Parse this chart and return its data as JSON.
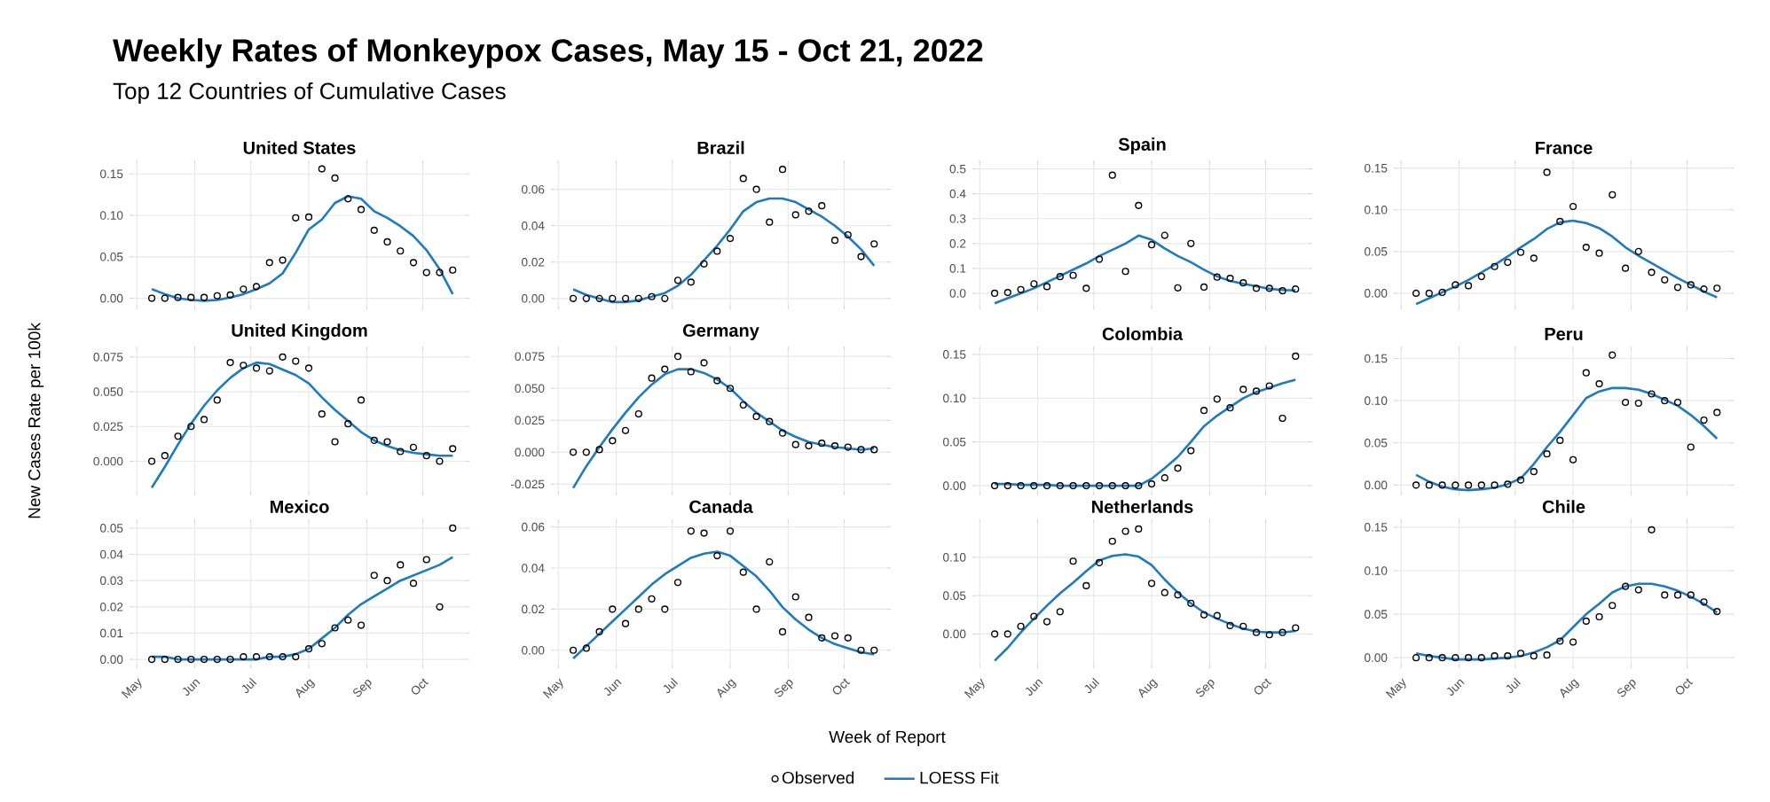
{
  "chart_data": [
    {
      "type": "other",
      "title": "Weekly Rates of Monkeypox Cases, May 15 - Oct 21, 2022",
      "subtitle": "Top 12 Countries of Cumulative Cases"
    },
    {
      "type": "scatter",
      "title": "United States",
      "tick_labels": "y",
      "grid": true,
      "x": [
        "2022-05-09",
        "2022-05-16",
        "2022-05-23",
        "2022-05-30",
        "2022-06-06",
        "2022-06-13",
        "2022-06-20",
        "2022-06-27",
        "2022-07-04",
        "2022-07-11",
        "2022-07-18",
        "2022-07-25",
        "2022-08-01",
        "2022-08-08",
        "2022-08-15",
        "2022-08-22",
        "2022-08-29",
        "2022-09-05",
        "2022-09-12",
        "2022-09-19",
        "2022-09-26",
        "2022-10-03",
        "2022-10-10",
        "2022-10-17"
      ],
      "xlim": [
        "2022-04-29",
        "2022-10-24"
      ],
      "xticks": [
        {
          "value": "2022-05-01",
          "label": null
        },
        {
          "value": "2022-06-01",
          "label": null
        },
        {
          "value": "2022-07-01",
          "label": null
        },
        {
          "value": "2022-08-01",
          "label": null
        },
        {
          "value": "2022-09-01",
          "label": null
        },
        {
          "value": "2022-10-01",
          "label": null
        }
      ],
      "ylim": [
        -0.009,
        0.162
      ],
      "yticks": [
        {
          "value": 0,
          "label": "0.00"
        },
        {
          "value": 0.05,
          "label": "0.05"
        },
        {
          "value": 0.1,
          "label": "0.10"
        },
        {
          "value": 0.15,
          "label": "0.15"
        }
      ],
      "series": [
        {
          "type": "scatter",
          "marker": "circle",
          "color": "#000000",
          "values": [
            0,
            0,
            0.001,
            0.001,
            0.001,
            0.003,
            0.004,
            0.011,
            0.014,
            0.043,
            0.046,
            0.097,
            0.098,
            0.156,
            0.145,
            0.12,
            0.107,
            0.082,
            0.068,
            0.057,
            0.043,
            0.031,
            0.031,
            0.034
          ]
        },
        {
          "type": "line",
          "color": "#1f7bbf",
          "values": [
            0.011,
            0.005,
            0.0,
            -0.002,
            -0.003,
            -0.002,
            0.001,
            0.005,
            0.011,
            0.018,
            0.03,
            0.055,
            0.083,
            0.095,
            0.115,
            0.123,
            0.12,
            0.105,
            0.097,
            0.087,
            0.075,
            0.058,
            0.035,
            0.005
          ]
        }
      ]
    },
    {
      "type": "scatter",
      "title": "Brazil",
      "tick_labels": "y",
      "grid": true,
      "x": [
        "2022-05-09",
        "2022-05-16",
        "2022-05-23",
        "2022-05-30",
        "2022-06-06",
        "2022-06-13",
        "2022-06-20",
        "2022-06-27",
        "2022-07-04",
        "2022-07-11",
        "2022-07-18",
        "2022-07-25",
        "2022-08-01",
        "2022-08-08",
        "2022-08-15",
        "2022-08-22",
        "2022-08-29",
        "2022-09-05",
        "2022-09-12",
        "2022-09-19",
        "2022-09-26",
        "2022-10-03",
        "2022-10-10",
        "2022-10-17"
      ],
      "xlim": [
        "2022-04-29",
        "2022-10-24"
      ],
      "xticks": [
        {
          "value": "2022-05-01",
          "label": null
        },
        {
          "value": "2022-06-01",
          "label": null
        },
        {
          "value": "2022-07-01",
          "label": null
        },
        {
          "value": "2022-08-01",
          "label": null
        },
        {
          "value": "2022-09-01",
          "label": null
        },
        {
          "value": "2022-10-01",
          "label": null
        }
      ],
      "ylim": [
        -0.004,
        0.074
      ],
      "yticks": [
        {
          "value": 0,
          "label": "0.00"
        },
        {
          "value": 0.02,
          "label": "0.02"
        },
        {
          "value": 0.04,
          "label": "0.04"
        },
        {
          "value": 0.06,
          "label": "0.06"
        }
      ],
      "series": [
        {
          "type": "scatter",
          "marker": "circle",
          "color": "#000000",
          "values": [
            0,
            0,
            0,
            0,
            0,
            0,
            0.001,
            0,
            0.01,
            0.009,
            0.019,
            0.026,
            0.033,
            0.066,
            0.06,
            0.042,
            0.071,
            0.046,
            0.048,
            0.051,
            0.032,
            0.035,
            0.023,
            0.03
          ]
        },
        {
          "type": "line",
          "color": "#1f7bbf",
          "values": [
            0.005,
            0.002,
            0,
            -0.002,
            -0.002,
            -0.001,
            0.001,
            0.003,
            0.007,
            0.013,
            0.021,
            0.029,
            0.038,
            0.048,
            0.053,
            0.055,
            0.055,
            0.053,
            0.049,
            0.045,
            0.04,
            0.034,
            0.027,
            0.018
          ]
        }
      ]
    },
    {
      "type": "scatter",
      "title": "Spain",
      "tick_labels": "y",
      "grid": true,
      "x": [
        "2022-05-09",
        "2022-05-16",
        "2022-05-23",
        "2022-05-30",
        "2022-06-06",
        "2022-06-13",
        "2022-06-20",
        "2022-06-27",
        "2022-07-04",
        "2022-07-11",
        "2022-07-18",
        "2022-07-25",
        "2022-08-01",
        "2022-08-08",
        "2022-08-15",
        "2022-08-22",
        "2022-08-29",
        "2022-09-05",
        "2022-09-12",
        "2022-09-19",
        "2022-09-26",
        "2022-10-03",
        "2022-10-10",
        "2022-10-17"
      ],
      "xlim": [
        "2022-04-29",
        "2022-10-24"
      ],
      "xticks": [
        {
          "value": "2022-05-01",
          "label": null
        },
        {
          "value": "2022-06-01",
          "label": null
        },
        {
          "value": "2022-07-01",
          "label": null
        },
        {
          "value": "2022-08-01",
          "label": null
        },
        {
          "value": "2022-09-01",
          "label": null
        },
        {
          "value": "2022-10-01",
          "label": null
        }
      ],
      "ylim": [
        -0.05,
        0.52
      ],
      "yticks": [
        {
          "value": 0,
          "label": "0.0"
        },
        {
          "value": 0.1,
          "label": "0.1"
        },
        {
          "value": 0.2,
          "label": "0.2"
        },
        {
          "value": 0.3,
          "label": "0.3"
        },
        {
          "value": 0.4,
          "label": "0.4"
        },
        {
          "value": 0.5,
          "label": "0.5"
        }
      ],
      "series": [
        {
          "type": "scatter",
          "marker": "circle",
          "color": "#000000",
          "values": [
            0,
            0.003,
            0.015,
            0.038,
            0.027,
            0.067,
            0.072,
            0.02,
            0.137,
            0.475,
            0.088,
            0.353,
            0.195,
            0.233,
            0.022,
            0.2,
            0.025,
            0.065,
            0.06,
            0.042,
            0.02,
            0.02,
            0.01,
            0.017
          ]
        },
        {
          "type": "line",
          "color": "#1f7bbf",
          "values": [
            -0.04,
            -0.02,
            0.0,
            0.02,
            0.045,
            0.07,
            0.095,
            0.12,
            0.15,
            0.175,
            0.2,
            0.232,
            0.215,
            0.18,
            0.15,
            0.125,
            0.095,
            0.068,
            0.05,
            0.038,
            0.028,
            0.018,
            0.013,
            0.012
          ]
        }
      ]
    },
    {
      "type": "scatter",
      "title": "France",
      "tick_labels": "y",
      "grid": true,
      "x": [
        "2022-05-09",
        "2022-05-16",
        "2022-05-23",
        "2022-05-30",
        "2022-06-06",
        "2022-06-13",
        "2022-06-20",
        "2022-06-27",
        "2022-07-04",
        "2022-07-11",
        "2022-07-18",
        "2022-07-25",
        "2022-08-01",
        "2022-08-08",
        "2022-08-15",
        "2022-08-22",
        "2022-08-29",
        "2022-09-05",
        "2022-09-12",
        "2022-09-19",
        "2022-09-26",
        "2022-10-03",
        "2022-10-10",
        "2022-10-17"
      ],
      "xlim": [
        "2022-04-29",
        "2022-10-24"
      ],
      "xticks": [
        {
          "value": "2022-05-01",
          "label": null
        },
        {
          "value": "2022-06-01",
          "label": null
        },
        {
          "value": "2022-07-01",
          "label": null
        },
        {
          "value": "2022-08-01",
          "label": null
        },
        {
          "value": "2022-09-01",
          "label": null
        },
        {
          "value": "2022-10-01",
          "label": null
        }
      ],
      "ylim": [
        -0.015,
        0.155
      ],
      "yticks": [
        {
          "value": 0,
          "label": "0.00"
        },
        {
          "value": 0.05,
          "label": "0.05"
        },
        {
          "value": 0.1,
          "label": "0.10"
        },
        {
          "value": 0.15,
          "label": "0.15"
        }
      ],
      "series": [
        {
          "type": "scatter",
          "marker": "circle",
          "color": "#000000",
          "values": [
            0,
            0,
            0.001,
            0.01,
            0.009,
            0.02,
            0.032,
            0.037,
            0.049,
            0.042,
            0.145,
            0.086,
            0.104,
            0.055,
            0.048,
            0.118,
            0.03,
            0.05,
            0.025,
            0.016,
            0.007,
            0.01,
            0.005,
            0.006
          ]
        },
        {
          "type": "line",
          "color": "#1f7bbf",
          "values": [
            -0.013,
            -0.006,
            0.001,
            0.008,
            0.016,
            0.025,
            0.034,
            0.044,
            0.055,
            0.065,
            0.077,
            0.085,
            0.087,
            0.084,
            0.078,
            0.068,
            0.055,
            0.045,
            0.036,
            0.027,
            0.018,
            0.01,
            0.002,
            -0.005
          ]
        }
      ]
    },
    {
      "type": "scatter",
      "title": "United Kingdom",
      "ylabel": "New Cases Rate per 100k",
      "tick_labels": "y",
      "grid": true,
      "x": [
        "2022-05-09",
        "2022-05-16",
        "2022-05-23",
        "2022-05-30",
        "2022-06-06",
        "2022-06-13",
        "2022-06-20",
        "2022-06-27",
        "2022-07-04",
        "2022-07-11",
        "2022-07-18",
        "2022-07-25",
        "2022-08-01",
        "2022-08-08",
        "2022-08-15",
        "2022-08-22",
        "2022-08-29",
        "2022-09-05",
        "2022-09-12",
        "2022-09-19",
        "2022-09-26",
        "2022-10-03",
        "2022-10-10",
        "2022-10-17"
      ],
      "xlim": [
        "2022-04-29",
        "2022-10-24"
      ],
      "xticks": [
        {
          "value": "2022-05-01",
          "label": null
        },
        {
          "value": "2022-06-01",
          "label": null
        },
        {
          "value": "2022-07-01",
          "label": null
        },
        {
          "value": "2022-08-01",
          "label": null
        },
        {
          "value": "2022-09-01",
          "label": null
        },
        {
          "value": "2022-10-01",
          "label": null
        }
      ],
      "ylim": [
        -0.022,
        0.08
      ],
      "yticks": [
        {
          "value": 0,
          "label": "0.000"
        },
        {
          "value": 0.025,
          "label": "0.025"
        },
        {
          "value": 0.05,
          "label": "0.050"
        },
        {
          "value": 0.075,
          "label": "0.075"
        }
      ],
      "series": [
        {
          "type": "scatter",
          "marker": "circle",
          "color": "#000000",
          "values": [
            0,
            0.004,
            0.018,
            0.025,
            0.03,
            0.044,
            0.071,
            0.069,
            0.067,
            0.065,
            0.075,
            0.072,
            0.067,
            0.034,
            0.014,
            0.027,
            0.044,
            0.015,
            0.014,
            0.007,
            0.01,
            0.004,
            0,
            0.009
          ]
        },
        {
          "type": "line",
          "color": "#1f7bbf",
          "values": [
            -0.019,
            -0.004,
            0.012,
            0.027,
            0.04,
            0.051,
            0.06,
            0.067,
            0.071,
            0.07,
            0.066,
            0.062,
            0.056,
            0.046,
            0.037,
            0.029,
            0.021,
            0.015,
            0.011,
            0.008,
            0.006,
            0.005,
            0.004,
            0.004
          ]
        }
      ]
    },
    {
      "type": "scatter",
      "title": "Germany",
      "tick_labels": "y",
      "grid": true,
      "x": [
        "2022-05-09",
        "2022-05-16",
        "2022-05-23",
        "2022-05-30",
        "2022-06-06",
        "2022-06-13",
        "2022-06-20",
        "2022-06-27",
        "2022-07-04",
        "2022-07-11",
        "2022-07-18",
        "2022-07-25",
        "2022-08-01",
        "2022-08-08",
        "2022-08-15",
        "2022-08-22",
        "2022-08-29",
        "2022-09-05",
        "2022-09-12",
        "2022-09-19",
        "2022-09-26",
        "2022-10-03",
        "2022-10-10",
        "2022-10-17"
      ],
      "xlim": [
        "2022-04-29",
        "2022-10-24"
      ],
      "xticks": [
        {
          "value": "2022-05-01",
          "label": null
        },
        {
          "value": "2022-06-01",
          "label": null
        },
        {
          "value": "2022-07-01",
          "label": null
        },
        {
          "value": "2022-08-01",
          "label": null
        },
        {
          "value": "2022-09-01",
          "label": null
        },
        {
          "value": "2022-10-01",
          "label": null
        }
      ],
      "ylim": [
        -0.031,
        0.08
      ],
      "yticks": [
        {
          "value": -0.025,
          "label": "-0.025"
        },
        {
          "value": 0,
          "label": "0.000"
        },
        {
          "value": 0.025,
          "label": "0.025"
        },
        {
          "value": 0.05,
          "label": "0.050"
        },
        {
          "value": 0.075,
          "label": "0.075"
        }
      ],
      "series": [
        {
          "type": "scatter",
          "marker": "circle",
          "color": "#000000",
          "values": [
            0,
            0,
            0.002,
            0.009,
            0.017,
            0.03,
            0.058,
            0.065,
            0.075,
            0.063,
            0.07,
            0.056,
            0.05,
            0.037,
            0.028,
            0.024,
            0.015,
            0.006,
            0.005,
            0.007,
            0.005,
            0.004,
            0.002,
            0.002
          ]
        },
        {
          "type": "line",
          "color": "#1f7bbf",
          "values": [
            -0.028,
            -0.011,
            0.004,
            0.018,
            0.031,
            0.043,
            0.053,
            0.061,
            0.065,
            0.065,
            0.062,
            0.057,
            0.05,
            0.04,
            0.031,
            0.024,
            0.017,
            0.012,
            0.008,
            0.006,
            0.004,
            0.003,
            0.002,
            0.003
          ]
        }
      ]
    },
    {
      "type": "scatter",
      "title": "Colombia",
      "tick_labels": "y",
      "grid": true,
      "x": [
        "2022-05-09",
        "2022-05-16",
        "2022-05-23",
        "2022-05-30",
        "2022-06-06",
        "2022-06-13",
        "2022-06-20",
        "2022-06-27",
        "2022-07-04",
        "2022-07-11",
        "2022-07-18",
        "2022-07-25",
        "2022-08-01",
        "2022-08-08",
        "2022-08-15",
        "2022-08-22",
        "2022-08-29",
        "2022-09-05",
        "2022-09-12",
        "2022-09-19",
        "2022-09-26",
        "2022-10-03",
        "2022-10-10",
        "2022-10-17"
      ],
      "xlim": [
        "2022-04-29",
        "2022-10-24"
      ],
      "xticks": [
        {
          "value": "2022-05-01",
          "label": null
        },
        {
          "value": "2022-06-01",
          "label": null
        },
        {
          "value": "2022-07-01",
          "label": null
        },
        {
          "value": "2022-08-01",
          "label": null
        },
        {
          "value": "2022-09-01",
          "label": null
        },
        {
          "value": "2022-10-01",
          "label": null
        }
      ],
      "ylim": [
        -0.007,
        0.155
      ],
      "yticks": [
        {
          "value": 0,
          "label": "0.00"
        },
        {
          "value": 0.05,
          "label": "0.05"
        },
        {
          "value": 0.1,
          "label": "0.10"
        },
        {
          "value": 0.15,
          "label": "0.15"
        }
      ],
      "series": [
        {
          "type": "scatter",
          "marker": "circle",
          "color": "#000000",
          "values": [
            0,
            0,
            0,
            0,
            0,
            0,
            0,
            0,
            0,
            0,
            0,
            0,
            0.002,
            0.009,
            0.02,
            0.04,
            0.086,
            0.099,
            0.089,
            0.11,
            0.108,
            0.114,
            0.077,
            0.148
          ]
        },
        {
          "type": "line",
          "color": "#1f7bbf",
          "values": [
            0.002,
            0.002,
            0.001,
            0.001,
            0.001,
            0,
            0,
            0,
            0,
            0,
            0,
            0,
            0.008,
            0.02,
            0.033,
            0.05,
            0.068,
            0.08,
            0.09,
            0.1,
            0.107,
            0.112,
            0.117,
            0.121
          ]
        }
      ]
    },
    {
      "type": "scatter",
      "title": "Peru",
      "tick_labels": "y",
      "grid": true,
      "x": [
        "2022-05-09",
        "2022-05-16",
        "2022-05-23",
        "2022-05-30",
        "2022-06-06",
        "2022-06-13",
        "2022-06-20",
        "2022-06-27",
        "2022-07-04",
        "2022-07-11",
        "2022-07-18",
        "2022-07-25",
        "2022-08-01",
        "2022-08-08",
        "2022-08-15",
        "2022-08-22",
        "2022-08-29",
        "2022-09-05",
        "2022-09-12",
        "2022-09-19",
        "2022-09-26",
        "2022-10-03",
        "2022-10-10",
        "2022-10-17"
      ],
      "xlim": [
        "2022-04-29",
        "2022-10-24"
      ],
      "xticks": [
        {
          "value": "2022-05-01",
          "label": null
        },
        {
          "value": "2022-06-01",
          "label": null
        },
        {
          "value": "2022-07-01",
          "label": null
        },
        {
          "value": "2022-08-01",
          "label": null
        },
        {
          "value": "2022-09-01",
          "label": null
        },
        {
          "value": "2022-10-01",
          "label": null
        }
      ],
      "ylim": [
        -0.008,
        0.16
      ],
      "yticks": [
        {
          "value": 0,
          "label": "0.00"
        },
        {
          "value": 0.05,
          "label": "0.05"
        },
        {
          "value": 0.1,
          "label": "0.10"
        },
        {
          "value": 0.15,
          "label": "0.15"
        }
      ],
      "series": [
        {
          "type": "scatter",
          "marker": "circle",
          "color": "#000000",
          "values": [
            0,
            0,
            0,
            0,
            0,
            0,
            0,
            0.001,
            0.006,
            0.016,
            0.037,
            0.053,
            0.03,
            0.133,
            0.12,
            0.154,
            0.098,
            0.097,
            0.108,
            0.1,
            0.098,
            0.045,
            0.077,
            0.086
          ]
        },
        {
          "type": "line",
          "color": "#1f7bbf",
          "values": [
            0.012,
            0.004,
            -0.002,
            -0.005,
            -0.006,
            -0.005,
            -0.003,
            0.001,
            0.008,
            0.025,
            0.045,
            0.063,
            0.083,
            0.103,
            0.111,
            0.115,
            0.115,
            0.113,
            0.108,
            0.101,
            0.094,
            0.083,
            0.07,
            0.055
          ]
        }
      ]
    },
    {
      "type": "scatter",
      "title": "Mexico",
      "grid": true,
      "x": [
        "2022-05-09",
        "2022-05-16",
        "2022-05-23",
        "2022-05-30",
        "2022-06-06",
        "2022-06-13",
        "2022-06-20",
        "2022-06-27",
        "2022-07-04",
        "2022-07-11",
        "2022-07-18",
        "2022-07-25",
        "2022-08-01",
        "2022-08-08",
        "2022-08-15",
        "2022-08-22",
        "2022-08-29",
        "2022-09-05",
        "2022-09-12",
        "2022-09-19",
        "2022-09-26",
        "2022-10-03",
        "2022-10-10",
        "2022-10-17"
      ],
      "xlim": [
        "2022-04-29",
        "2022-10-24"
      ],
      "xticks": [
        {
          "value": "2022-05-01",
          "label": "May"
        },
        {
          "value": "2022-06-01",
          "label": "Jun"
        },
        {
          "value": "2022-07-01",
          "label": "Jul"
        },
        {
          "value": "2022-08-01",
          "label": "Aug"
        },
        {
          "value": "2022-09-01",
          "label": "Sep"
        },
        {
          "value": "2022-10-01",
          "label": "Oct"
        }
      ],
      "ylim": [
        -0.002,
        0.052
      ],
      "yticks": [
        {
          "value": 0,
          "label": "0.00"
        },
        {
          "value": 0.01,
          "label": "0.01"
        },
        {
          "value": 0.02,
          "label": "0.02"
        },
        {
          "value": 0.03,
          "label": "0.03"
        },
        {
          "value": 0.04,
          "label": "0.04"
        },
        {
          "value": 0.05,
          "label": "0.05"
        }
      ],
      "series": [
        {
          "type": "scatter",
          "marker": "circle",
          "color": "#000000",
          "values": [
            0,
            0,
            0,
            0,
            0,
            0,
            0,
            0.001,
            0.001,
            0.001,
            0.001,
            0.001,
            0.004,
            0.006,
            0.012,
            0.015,
            0.013,
            0.032,
            0.03,
            0.036,
            0.029,
            0.038,
            0.02,
            0.05
          ]
        },
        {
          "type": "line",
          "color": "#1f7bbf",
          "values": [
            0.001,
            0.001,
            0,
            0,
            0,
            0,
            0,
            0,
            0,
            0.001,
            0.001,
            0.002,
            0.004,
            0.008,
            0.012,
            0.017,
            0.021,
            0.024,
            0.027,
            0.03,
            0.032,
            0.034,
            0.036,
            0.039
          ]
        }
      ]
    },
    {
      "type": "scatter",
      "title": "Canada",
      "xlabel": "Week of Report",
      "grid": true,
      "legend": "bottom",
      "x": [
        "2022-05-09",
        "2022-05-16",
        "2022-05-23",
        "2022-05-30",
        "2022-06-06",
        "2022-06-13",
        "2022-06-20",
        "2022-06-27",
        "2022-07-04",
        "2022-07-11",
        "2022-07-18",
        "2022-07-25",
        "2022-08-01",
        "2022-08-08",
        "2022-08-15",
        "2022-08-22",
        "2022-08-29",
        "2022-09-05",
        "2022-09-12",
        "2022-09-19",
        "2022-09-26",
        "2022-10-03",
        "2022-10-10",
        "2022-10-17"
      ],
      "xlim": [
        "2022-04-29",
        "2022-10-24"
      ],
      "xticks": [
        {
          "value": "2022-05-01",
          "label": "May"
        },
        {
          "value": "2022-06-01",
          "label": "Jun"
        },
        {
          "value": "2022-07-01",
          "label": "Jul"
        },
        {
          "value": "2022-08-01",
          "label": "Aug"
        },
        {
          "value": "2022-09-01",
          "label": "Sep"
        },
        {
          "value": "2022-10-01",
          "label": "Oct"
        }
      ],
      "ylim": [
        -0.007,
        0.062
      ],
      "yticks": [
        {
          "value": 0,
          "label": "0.00"
        },
        {
          "value": 0.02,
          "label": "0.02"
        },
        {
          "value": 0.04,
          "label": "0.04"
        },
        {
          "value": 0.06,
          "label": "0.06"
        }
      ],
      "series": [
        {
          "type": "scatter",
          "name": "Observed",
          "marker": "circle",
          "color": "#000000",
          "values": [
            0,
            0.001,
            0.009,
            0.02,
            0.013,
            0.02,
            0.025,
            0.02,
            0.033,
            0.058,
            0.057,
            0.046,
            0.058,
            0.038,
            0.02,
            0.043,
            0.009,
            0.026,
            0.016,
            0.006,
            0.007,
            0.006,
            0,
            0
          ]
        },
        {
          "type": "line",
          "name": "LOESS Fit",
          "color": "#1f7bbf",
          "values": [
            -0.004,
            0.002,
            0.008,
            0.014,
            0.02,
            0.026,
            0.032,
            0.037,
            0.041,
            0.045,
            0.047,
            0.048,
            0.046,
            0.041,
            0.036,
            0.029,
            0.021,
            0.015,
            0.01,
            0.006,
            0.003,
            0.001,
            -0.001,
            -0.002
          ]
        }
      ]
    },
    {
      "type": "scatter",
      "title": "Netherlands",
      "grid": true,
      "x": [
        "2022-05-09",
        "2022-05-16",
        "2022-05-23",
        "2022-05-30",
        "2022-06-06",
        "2022-06-13",
        "2022-06-20",
        "2022-06-27",
        "2022-07-04",
        "2022-07-11",
        "2022-07-18",
        "2022-07-25",
        "2022-08-01",
        "2022-08-08",
        "2022-08-15",
        "2022-08-22",
        "2022-08-29",
        "2022-09-05",
        "2022-09-12",
        "2022-09-19",
        "2022-09-26",
        "2022-10-03",
        "2022-10-10",
        "2022-10-17"
      ],
      "xlim": [
        "2022-04-29",
        "2022-10-24"
      ],
      "xticks": [
        {
          "value": "2022-05-01",
          "label": "May"
        },
        {
          "value": "2022-06-01",
          "label": "Jun"
        },
        {
          "value": "2022-07-01",
          "label": "Jul"
        },
        {
          "value": "2022-08-01",
          "label": "Aug"
        },
        {
          "value": "2022-09-01",
          "label": "Sep"
        },
        {
          "value": "2022-10-01",
          "label": "Oct"
        }
      ],
      "ylim": [
        -0.04,
        0.145
      ],
      "yticks": [
        {
          "value": 0,
          "label": "0.00"
        },
        {
          "value": 0.05,
          "label": "0.05"
        },
        {
          "value": 0.1,
          "label": "0.10"
        }
      ],
      "series": [
        {
          "type": "scatter",
          "marker": "circle",
          "color": "#000000",
          "values": [
            0,
            0,
            0.01,
            0.023,
            0.016,
            0.029,
            0.095,
            0.063,
            0.093,
            0.121,
            0.134,
            0.137,
            0.066,
            0.054,
            0.051,
            0.04,
            0.025,
            0.024,
            0.011,
            0.01,
            0.002,
            -0.001,
            0.002,
            0.008
          ]
        },
        {
          "type": "line",
          "color": "#1f7bbf",
          "values": [
            -0.035,
            -0.018,
            0.002,
            0.02,
            0.037,
            0.053,
            0.067,
            0.082,
            0.096,
            0.102,
            0.104,
            0.101,
            0.09,
            0.071,
            0.054,
            0.04,
            0.028,
            0.02,
            0.013,
            0.007,
            0.003,
            0.002,
            0.002,
            0.004
          ]
        }
      ]
    },
    {
      "type": "scatter",
      "title": "Chile",
      "grid": true,
      "x": [
        "2022-05-09",
        "2022-05-16",
        "2022-05-23",
        "2022-05-30",
        "2022-06-06",
        "2022-06-13",
        "2022-06-20",
        "2022-06-27",
        "2022-07-04",
        "2022-07-11",
        "2022-07-18",
        "2022-07-25",
        "2022-08-01",
        "2022-08-08",
        "2022-08-15",
        "2022-08-22",
        "2022-08-29",
        "2022-09-05",
        "2022-09-12",
        "2022-09-19",
        "2022-09-26",
        "2022-10-03",
        "2022-10-10",
        "2022-10-17"
      ],
      "xlim": [
        "2022-04-29",
        "2022-10-24"
      ],
      "xticks": [
        {
          "value": "2022-05-01",
          "label": "May"
        },
        {
          "value": "2022-06-01",
          "label": "Jun"
        },
        {
          "value": "2022-07-01",
          "label": "Jul"
        },
        {
          "value": "2022-08-01",
          "label": "Aug"
        },
        {
          "value": "2022-09-01",
          "label": "Sep"
        },
        {
          "value": "2022-10-01",
          "label": "Oct"
        }
      ],
      "ylim": [
        -0.008,
        0.155
      ],
      "yticks": [
        {
          "value": 0,
          "label": "0.00"
        },
        {
          "value": 0.05,
          "label": "0.05"
        },
        {
          "value": 0.1,
          "label": "0.10"
        },
        {
          "value": 0.15,
          "label": "0.15"
        }
      ],
      "series": [
        {
          "type": "scatter",
          "marker": "circle",
          "color": "#000000",
          "values": [
            0,
            0,
            0,
            0,
            0,
            0,
            0.002,
            0.002,
            0.005,
            0.002,
            0.003,
            0.019,
            0.018,
            0.042,
            0.047,
            0.06,
            0.082,
            0.078,
            0.147,
            0.072,
            0.072,
            0.072,
            0.064,
            0.053
          ]
        },
        {
          "type": "line",
          "color": "#1f7bbf",
          "values": [
            0.005,
            0.002,
            0,
            -0.002,
            -0.002,
            -0.002,
            -0.001,
            0,
            0.002,
            0.006,
            0.012,
            0.02,
            0.035,
            0.05,
            0.062,
            0.075,
            0.082,
            0.085,
            0.085,
            0.082,
            0.077,
            0.07,
            0.062,
            0.052
          ]
        }
      ]
    }
  ]
}
